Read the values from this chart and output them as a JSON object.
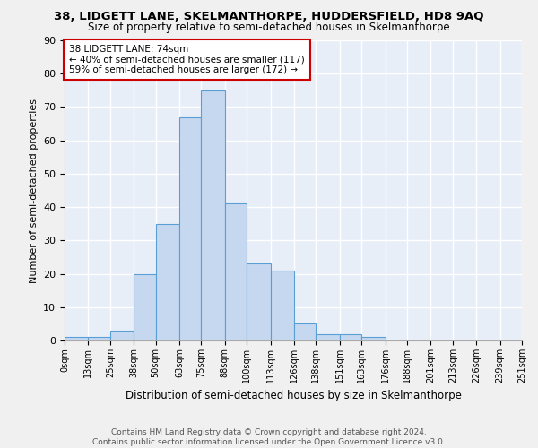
{
  "title1": "38, LIDGETT LANE, SKELMANTHORPE, HUDDERSFIELD, HD8 9AQ",
  "title2": "Size of property relative to semi-detached houses in Skelmanthorpe",
  "xlabel": "Distribution of semi-detached houses by size in Skelmanthorpe",
  "ylabel": "Number of semi-detached properties",
  "footnote1": "Contains HM Land Registry data © Crown copyright and database right 2024.",
  "footnote2": "Contains public sector information licensed under the Open Government Licence v3.0.",
  "annotation_title": "38 LIDGETT LANE: 74sqm",
  "annotation_line1": "← 40% of semi-detached houses are smaller (117)",
  "annotation_line2": "59% of semi-detached houses are larger (172) →",
  "property_size": 74,
  "bar_edges": [
    0,
    13,
    25,
    38,
    50,
    63,
    75,
    88,
    100,
    113,
    126,
    138,
    151,
    163,
    176,
    188,
    201,
    213,
    226,
    239,
    251
  ],
  "bar_heights": [
    1,
    1,
    3,
    20,
    35,
    67,
    75,
    41,
    23,
    21,
    5,
    2,
    2,
    1,
    0,
    0,
    0,
    0,
    0,
    0
  ],
  "bar_color": "#c5d8f0",
  "bar_edge_color": "#5a9fd4",
  "bg_color": "#e8eef8",
  "grid_color": "#ffffff",
  "fig_bg_color": "#f0f0f0",
  "ylim": [
    0,
    90
  ],
  "yticks": [
    0,
    10,
    20,
    30,
    40,
    50,
    60,
    70,
    80,
    90
  ],
  "title1_fontsize": 9.5,
  "title2_fontsize": 8.5,
  "ylabel_fontsize": 8,
  "xlabel_fontsize": 8.5,
  "annot_fontsize": 7.5,
  "footnote_fontsize": 6.5
}
